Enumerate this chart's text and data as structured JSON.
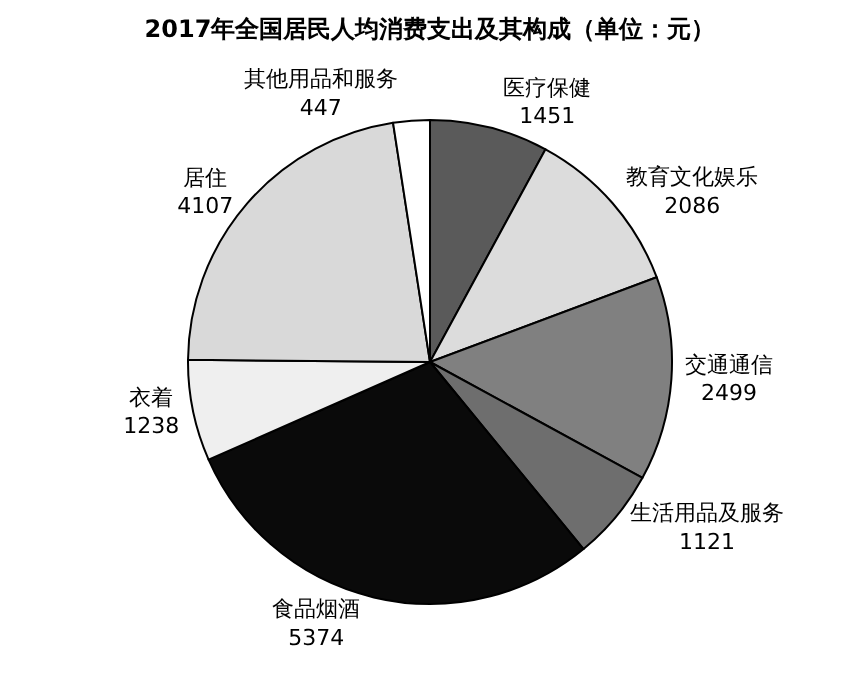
{
  "chart_data": {
    "type": "pie",
    "title": "2017年全国居民人均消费支出及其构成（单位：元）",
    "categories": [
      "医疗保健",
      "教育文化娱乐",
      "交通通信",
      "生活用品及服务",
      "食品烟酒",
      "衣着",
      "居住",
      "其他用品和服务"
    ],
    "values": [
      1451,
      2086,
      2499,
      1121,
      5374,
      1238,
      4107,
      447
    ],
    "colors": [
      "#5a5a5a",
      "#dcdcdc",
      "#808080",
      "#6e6e6e",
      "#0a0a0a",
      "#efefef",
      "#d9d9d9",
      "#ffffff"
    ],
    "data_labels": true,
    "legend": false
  }
}
